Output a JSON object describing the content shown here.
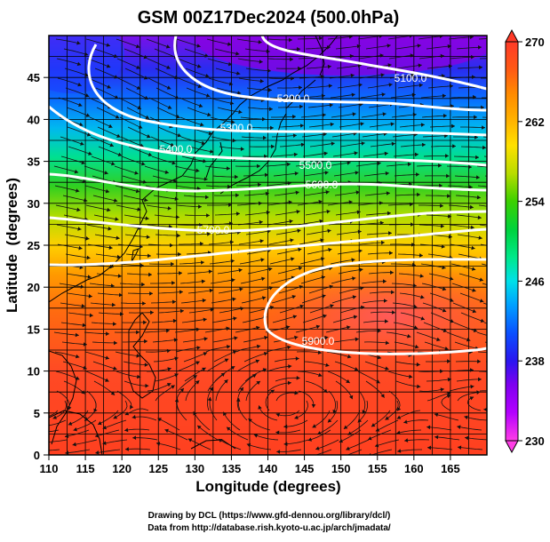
{
  "title": "GSM 00Z17Dec2024 (500.0hPa)",
  "x_axis": {
    "label": "Longitude (degrees)",
    "range": [
      110,
      170
    ],
    "ticks": [
      110,
      115,
      120,
      125,
      130,
      135,
      140,
      145,
      150,
      155,
      160,
      165
    ]
  },
  "y_axis": {
    "label": "Latitude  (degrees)",
    "range": [
      0,
      50
    ],
    "ticks": [
      0,
      5,
      10,
      15,
      20,
      25,
      30,
      35,
      40,
      45
    ]
  },
  "colorbar": {
    "range": [
      230,
      270
    ],
    "tick_labels": [
      "270",
      "262",
      "254",
      "246",
      "238",
      "230"
    ],
    "tick_values": [
      270,
      262,
      254,
      246,
      238,
      230
    ],
    "colors": [
      "#ff3de6",
      "#b400ff",
      "#7e00f0",
      "#2a16f0",
      "#0a50ff",
      "#00a0ff",
      "#00e0e8",
      "#00e88a",
      "#00d23c",
      "#3cd000",
      "#b8dc00",
      "#ffe000",
      "#ffb400",
      "#ff8a00",
      "#ff5a14",
      "#ff3a28",
      "#ff5050"
    ]
  },
  "contour_labels": [
    "5100.0",
    "5200.0",
    "5300.0",
    "5400.0",
    "5500.0",
    "5600.0",
    "5700.0",
    "5900.0"
  ],
  "credits": {
    "line1": "Drawing by DCL (https://www.gfd-dennou.org/library/dcl/)",
    "line2": "Data from http://database.rish.kyoto-u.ac.jp/arch/jmadata/"
  }
}
